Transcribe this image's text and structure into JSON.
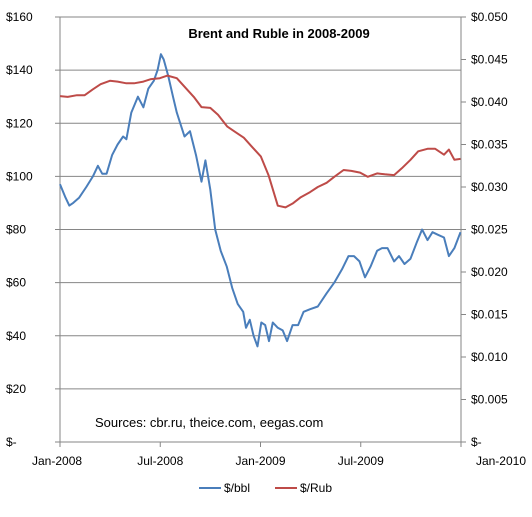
{
  "chart_data": {
    "type": "line",
    "title": "Brent and Ruble in 2008-2009",
    "annotation": "Sources: cbr.ru, theice.com, eegas.com",
    "x_ticks": [
      "Jan-2008",
      "Jul-2008",
      "Jan-2009",
      "Jul-2009",
      "Jan-2010"
    ],
    "x_range": [
      "2008-01-01",
      "2010-01-01"
    ],
    "y_left": {
      "ticks": [
        "$-",
        "$20",
        "$40",
        "$60",
        "$80",
        "$100",
        "$120",
        "$140",
        "$160"
      ],
      "range": [
        0,
        160
      ]
    },
    "y_right": {
      "ticks": [
        "$-",
        "$0.005",
        "$0.010",
        "$0.015",
        "$0.020",
        "$0.025",
        "$0.030",
        "$0.035",
        "$0.040",
        "$0.045",
        "$0.050"
      ],
      "range": [
        0,
        0.05
      ]
    },
    "grid": true,
    "legend_position": "bottom",
    "series": [
      {
        "name": "$/bbl",
        "axis": "left",
        "color": "#4a7ebb",
        "points": [
          [
            "2008-01-01",
            97
          ],
          [
            "2008-01-11",
            92
          ],
          [
            "2008-01-18",
            89
          ],
          [
            "2008-01-25",
            90
          ],
          [
            "2008-02-05",
            92
          ],
          [
            "2008-02-18",
            96
          ],
          [
            "2008-03-01",
            100
          ],
          [
            "2008-03-10",
            104
          ],
          [
            "2008-03-18",
            101
          ],
          [
            "2008-03-26",
            101
          ],
          [
            "2008-04-05",
            108
          ],
          [
            "2008-04-15",
            112
          ],
          [
            "2008-04-25",
            115
          ],
          [
            "2008-05-01",
            114
          ],
          [
            "2008-05-10",
            124
          ],
          [
            "2008-05-22",
            130
          ],
          [
            "2008-06-01",
            126
          ],
          [
            "2008-06-10",
            133
          ],
          [
            "2008-06-20",
            136
          ],
          [
            "2008-06-27",
            140
          ],
          [
            "2008-07-03",
            146
          ],
          [
            "2008-07-08",
            144
          ],
          [
            "2008-07-16",
            138
          ],
          [
            "2008-07-25",
            130
          ],
          [
            "2008-08-01",
            124
          ],
          [
            "2008-08-15",
            115
          ],
          [
            "2008-08-25",
            117
          ],
          [
            "2008-09-05",
            108
          ],
          [
            "2008-09-15",
            98
          ],
          [
            "2008-09-22",
            106
          ],
          [
            "2008-10-01",
            95
          ],
          [
            "2008-10-10",
            80
          ],
          [
            "2008-10-20",
            72
          ],
          [
            "2008-10-31",
            66
          ],
          [
            "2008-11-10",
            58
          ],
          [
            "2008-11-20",
            52
          ],
          [
            "2008-11-30",
            49
          ],
          [
            "2008-12-05",
            43
          ],
          [
            "2008-12-12",
            46
          ],
          [
            "2008-12-19",
            40
          ],
          [
            "2008-12-26",
            36
          ],
          [
            "2009-01-02",
            45
          ],
          [
            "2009-01-09",
            44
          ],
          [
            "2009-01-16",
            38
          ],
          [
            "2009-01-23",
            45
          ],
          [
            "2009-02-01",
            43
          ],
          [
            "2009-02-10",
            42
          ],
          [
            "2009-02-18",
            38
          ],
          [
            "2009-02-28",
            44
          ],
          [
            "2009-03-10",
            44
          ],
          [
            "2009-03-20",
            49
          ],
          [
            "2009-04-01",
            50
          ],
          [
            "2009-04-15",
            51
          ],
          [
            "2009-05-01",
            56
          ],
          [
            "2009-05-15",
            60
          ],
          [
            "2009-05-29",
            65
          ],
          [
            "2009-06-10",
            70
          ],
          [
            "2009-06-20",
            70
          ],
          [
            "2009-06-30",
            68
          ],
          [
            "2009-07-10",
            62
          ],
          [
            "2009-07-20",
            66
          ],
          [
            "2009-08-01",
            72
          ],
          [
            "2009-08-10",
            73
          ],
          [
            "2009-08-20",
            73
          ],
          [
            "2009-09-01",
            68
          ],
          [
            "2009-09-10",
            70
          ],
          [
            "2009-09-20",
            67
          ],
          [
            "2009-10-01",
            69
          ],
          [
            "2009-10-12",
            75
          ],
          [
            "2009-10-22",
            80
          ],
          [
            "2009-11-01",
            76
          ],
          [
            "2009-11-10",
            79
          ],
          [
            "2009-11-20",
            78
          ],
          [
            "2009-12-01",
            77
          ],
          [
            "2009-12-10",
            70
          ],
          [
            "2009-12-20",
            73
          ],
          [
            "2009-12-31",
            79
          ]
        ]
      },
      {
        "name": "$/Rub",
        "axis": "right",
        "color": "#be4b48",
        "points": [
          [
            "2008-01-01",
            0.0407
          ],
          [
            "2008-01-15",
            0.0406
          ],
          [
            "2008-02-01",
            0.0408
          ],
          [
            "2008-02-15",
            0.0408
          ],
          [
            "2008-03-01",
            0.0415
          ],
          [
            "2008-03-15",
            0.0421
          ],
          [
            "2008-04-01",
            0.0425
          ],
          [
            "2008-04-15",
            0.0424
          ],
          [
            "2008-05-01",
            0.0422
          ],
          [
            "2008-05-15",
            0.0422
          ],
          [
            "2008-06-01",
            0.0424
          ],
          [
            "2008-06-15",
            0.0427
          ],
          [
            "2008-07-01",
            0.0428
          ],
          [
            "2008-07-15",
            0.0431
          ],
          [
            "2008-08-01",
            0.0428
          ],
          [
            "2008-08-15",
            0.0418
          ],
          [
            "2008-09-01",
            0.0406
          ],
          [
            "2008-09-15",
            0.0394
          ],
          [
            "2008-10-01",
            0.0393
          ],
          [
            "2008-10-15",
            0.0385
          ],
          [
            "2008-11-01",
            0.0371
          ],
          [
            "2008-11-15",
            0.0365
          ],
          [
            "2008-12-01",
            0.0358
          ],
          [
            "2008-12-15",
            0.0348
          ],
          [
            "2009-01-01",
            0.0336
          ],
          [
            "2009-01-15",
            0.0314
          ],
          [
            "2009-02-01",
            0.0278
          ],
          [
            "2009-02-15",
            0.0276
          ],
          [
            "2009-03-01",
            0.0281
          ],
          [
            "2009-03-15",
            0.0288
          ],
          [
            "2009-04-01",
            0.0294
          ],
          [
            "2009-04-15",
            0.03
          ],
          [
            "2009-05-01",
            0.0305
          ],
          [
            "2009-05-15",
            0.0312
          ],
          [
            "2009-06-01",
            0.032
          ],
          [
            "2009-06-15",
            0.0319
          ],
          [
            "2009-07-01",
            0.0317
          ],
          [
            "2009-07-15",
            0.0312
          ],
          [
            "2009-08-01",
            0.0316
          ],
          [
            "2009-08-15",
            0.0315
          ],
          [
            "2009-09-01",
            0.0314
          ],
          [
            "2009-09-15",
            0.0322
          ],
          [
            "2009-10-01",
            0.0332
          ],
          [
            "2009-10-15",
            0.0342
          ],
          [
            "2009-11-01",
            0.0345
          ],
          [
            "2009-11-15",
            0.0345
          ],
          [
            "2009-12-01",
            0.0338
          ],
          [
            "2009-12-10",
            0.0344
          ],
          [
            "2009-12-20",
            0.0332
          ],
          [
            "2009-12-31",
            0.0333
          ]
        ]
      }
    ]
  }
}
